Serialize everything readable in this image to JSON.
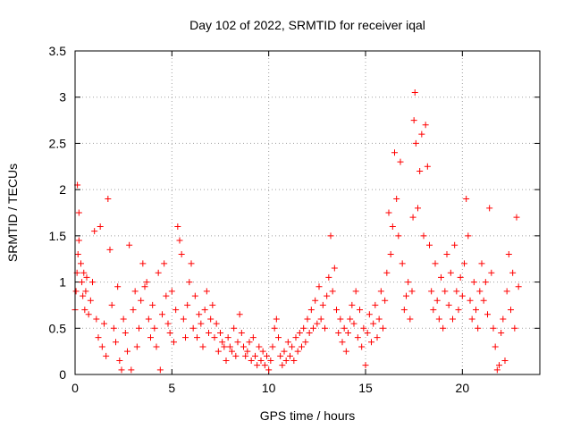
{
  "chart_data": {
    "type": "scatter",
    "title": "Day 102 of 2022, SRMTID for receiver iqal",
    "xlabel": "GPS time / hours",
    "ylabel": "SRMTID / TECUs",
    "xlim": [
      0,
      24
    ],
    "ylim": [
      0,
      3.5
    ],
    "x_ticks": [
      0,
      5,
      10,
      15,
      20
    ],
    "x_tick_labels": [
      "0",
      "5",
      "10",
      "15",
      "20"
    ],
    "y_ticks": [
      0,
      0.5,
      1,
      1.5,
      2,
      2.5,
      3,
      3.5
    ],
    "y_tick_labels": [
      "0",
      "0.5",
      "1",
      "1.5",
      "2",
      "2.5",
      "3",
      "3.5"
    ],
    "grid": true,
    "marker": "+",
    "color": "#ff0000",
    "series": [
      {
        "name": "SRMTID",
        "points": [
          [
            0.0,
            0.7
          ],
          [
            0.05,
            0.9
          ],
          [
            0.1,
            1.1
          ],
          [
            0.15,
            1.3
          ],
          [
            0.2,
            1.45
          ],
          [
            0.12,
            2.05
          ],
          [
            0.2,
            1.75
          ],
          [
            0.3,
            1.2
          ],
          [
            0.35,
            1.0
          ],
          [
            0.4,
            0.85
          ],
          [
            0.45,
            1.1
          ],
          [
            0.5,
            0.7
          ],
          [
            0.55,
            0.9
          ],
          [
            0.6,
            1.05
          ],
          [
            0.7,
            0.65
          ],
          [
            0.8,
            0.8
          ],
          [
            0.9,
            1.0
          ],
          [
            1.0,
            1.55
          ],
          [
            1.1,
            0.6
          ],
          [
            1.2,
            0.4
          ],
          [
            1.3,
            1.6
          ],
          [
            1.4,
            0.3
          ],
          [
            1.5,
            0.55
          ],
          [
            1.6,
            0.2
          ],
          [
            1.7,
            1.9
          ],
          [
            1.8,
            1.35
          ],
          [
            1.9,
            0.75
          ],
          [
            2.0,
            0.5
          ],
          [
            2.1,
            0.35
          ],
          [
            2.2,
            0.95
          ],
          [
            2.3,
            0.15
          ],
          [
            2.4,
            0.05
          ],
          [
            2.5,
            0.6
          ],
          [
            2.6,
            0.45
          ],
          [
            2.7,
            0.25
          ],
          [
            2.8,
            1.4
          ],
          [
            2.9,
            0.05
          ],
          [
            3.0,
            0.7
          ],
          [
            3.1,
            0.9
          ],
          [
            3.2,
            0.3
          ],
          [
            3.3,
            0.5
          ],
          [
            3.4,
            0.8
          ],
          [
            3.5,
            1.2
          ],
          [
            3.6,
            0.95
          ],
          [
            3.7,
            1.0
          ],
          [
            3.8,
            0.6
          ],
          [
            3.9,
            0.4
          ],
          [
            4.0,
            0.75
          ],
          [
            4.1,
            0.5
          ],
          [
            4.2,
            0.3
          ],
          [
            4.3,
            1.1
          ],
          [
            4.4,
            0.05
          ],
          [
            4.5,
            0.65
          ],
          [
            4.6,
            1.2
          ],
          [
            4.7,
            0.85
          ],
          [
            4.8,
            0.55
          ],
          [
            4.9,
            0.45
          ],
          [
            5.0,
            0.9
          ],
          [
            5.1,
            0.35
          ],
          [
            5.2,
            0.7
          ],
          [
            5.3,
            1.6
          ],
          [
            5.4,
            1.45
          ],
          [
            5.5,
            1.3
          ],
          [
            5.6,
            0.6
          ],
          [
            5.7,
            0.4
          ],
          [
            5.8,
            0.75
          ],
          [
            5.9,
            1.0
          ],
          [
            6.0,
            1.2
          ],
          [
            6.1,
            0.5
          ],
          [
            6.2,
            0.85
          ],
          [
            6.3,
            0.4
          ],
          [
            6.4,
            0.65
          ],
          [
            6.5,
            0.55
          ],
          [
            6.6,
            0.3
          ],
          [
            6.7,
            0.7
          ],
          [
            6.8,
            0.9
          ],
          [
            6.9,
            0.45
          ],
          [
            7.0,
            0.6
          ],
          [
            7.1,
            0.75
          ],
          [
            7.2,
            0.4
          ],
          [
            7.3,
            0.55
          ],
          [
            7.4,
            0.25
          ],
          [
            7.5,
            0.45
          ],
          [
            7.6,
            0.35
          ],
          [
            7.7,
            0.3
          ],
          [
            7.8,
            0.15
          ],
          [
            7.9,
            0.4
          ],
          [
            8.0,
            0.3
          ],
          [
            8.1,
            0.25
          ],
          [
            8.2,
            0.5
          ],
          [
            8.3,
            0.2
          ],
          [
            8.4,
            0.35
          ],
          [
            8.5,
            0.65
          ],
          [
            8.6,
            0.45
          ],
          [
            8.7,
            0.3
          ],
          [
            8.8,
            0.2
          ],
          [
            8.9,
            0.25
          ],
          [
            9.0,
            0.35
          ],
          [
            9.1,
            0.15
          ],
          [
            9.2,
            0.4
          ],
          [
            9.3,
            0.2
          ],
          [
            9.4,
            0.1
          ],
          [
            9.5,
            0.3
          ],
          [
            9.6,
            0.15
          ],
          [
            9.7,
            0.25
          ],
          [
            9.8,
            0.1
          ],
          [
            9.9,
            0.2
          ],
          [
            10.0,
            0.05
          ],
          [
            10.1,
            0.15
          ],
          [
            10.2,
            0.3
          ],
          [
            10.3,
            0.5
          ],
          [
            10.4,
            0.6
          ],
          [
            10.5,
            0.4
          ],
          [
            10.6,
            0.2
          ],
          [
            10.7,
            0.1
          ],
          [
            10.8,
            0.25
          ],
          [
            10.9,
            0.15
          ],
          [
            11.0,
            0.35
          ],
          [
            11.1,
            0.2
          ],
          [
            11.2,
            0.3
          ],
          [
            11.3,
            0.15
          ],
          [
            11.4,
            0.4
          ],
          [
            11.5,
            0.25
          ],
          [
            11.6,
            0.45
          ],
          [
            11.7,
            0.3
          ],
          [
            11.8,
            0.5
          ],
          [
            11.9,
            0.35
          ],
          [
            12.0,
            0.6
          ],
          [
            12.1,
            0.45
          ],
          [
            12.2,
            0.7
          ],
          [
            12.3,
            0.5
          ],
          [
            12.4,
            0.8
          ],
          [
            12.5,
            0.55
          ],
          [
            12.6,
            0.95
          ],
          [
            12.7,
            0.6
          ],
          [
            12.8,
            0.75
          ],
          [
            12.9,
            0.5
          ],
          [
            13.0,
            0.85
          ],
          [
            13.1,
            1.05
          ],
          [
            13.2,
            1.5
          ],
          [
            13.3,
            0.9
          ],
          [
            13.4,
            1.15
          ],
          [
            13.5,
            0.7
          ],
          [
            13.6,
            0.45
          ],
          [
            13.7,
            0.6
          ],
          [
            13.8,
            0.35
          ],
          [
            13.9,
            0.5
          ],
          [
            14.0,
            0.25
          ],
          [
            14.1,
            0.45
          ],
          [
            14.2,
            0.6
          ],
          [
            14.3,
            0.75
          ],
          [
            14.4,
            0.55
          ],
          [
            14.5,
            0.9
          ],
          [
            14.6,
            0.4
          ],
          [
            14.7,
            0.7
          ],
          [
            14.8,
            0.3
          ],
          [
            14.9,
            0.5
          ],
          [
            15.0,
            0.1
          ],
          [
            15.1,
            0.45
          ],
          [
            15.2,
            0.65
          ],
          [
            15.3,
            0.35
          ],
          [
            15.4,
            0.55
          ],
          [
            15.5,
            0.75
          ],
          [
            15.6,
            0.4
          ],
          [
            15.7,
            0.6
          ],
          [
            15.8,
            0.9
          ],
          [
            15.9,
            0.5
          ],
          [
            16.0,
            0.8
          ],
          [
            16.1,
            1.1
          ],
          [
            16.2,
            1.75
          ],
          [
            16.3,
            1.3
          ],
          [
            16.4,
            1.6
          ],
          [
            16.5,
            2.4
          ],
          [
            16.6,
            1.9
          ],
          [
            16.7,
            1.5
          ],
          [
            16.8,
            2.3
          ],
          [
            16.9,
            1.2
          ],
          [
            17.0,
            0.7
          ],
          [
            17.1,
            0.85
          ],
          [
            17.2,
            1.0
          ],
          [
            17.3,
            0.6
          ],
          [
            17.4,
            0.9
          ],
          [
            17.45,
            1.7
          ],
          [
            17.5,
            2.75
          ],
          [
            17.55,
            3.05
          ],
          [
            17.6,
            2.5
          ],
          [
            17.7,
            1.8
          ],
          [
            17.8,
            2.2
          ],
          [
            17.9,
            2.6
          ],
          [
            18.0,
            1.5
          ],
          [
            18.1,
            2.7
          ],
          [
            18.2,
            2.25
          ],
          [
            18.3,
            1.4
          ],
          [
            18.4,
            0.9
          ],
          [
            18.5,
            0.7
          ],
          [
            18.6,
            1.2
          ],
          [
            18.7,
            0.8
          ],
          [
            18.8,
            0.6
          ],
          [
            18.9,
            1.05
          ],
          [
            19.0,
            0.5
          ],
          [
            19.1,
            0.9
          ],
          [
            19.2,
            1.3
          ],
          [
            19.3,
            0.75
          ],
          [
            19.4,
            1.1
          ],
          [
            19.5,
            0.6
          ],
          [
            19.6,
            1.4
          ],
          [
            19.7,
            0.9
          ],
          [
            19.8,
            0.7
          ],
          [
            19.9,
            1.05
          ],
          [
            20.0,
            0.85
          ],
          [
            20.1,
            1.2
          ],
          [
            20.2,
            1.9
          ],
          [
            20.3,
            1.5
          ],
          [
            20.4,
            0.8
          ],
          [
            20.5,
            0.6
          ],
          [
            20.6,
            1.0
          ],
          [
            20.7,
            0.7
          ],
          [
            20.8,
            0.5
          ],
          [
            20.9,
            0.9
          ],
          [
            21.0,
            1.2
          ],
          [
            21.1,
            0.8
          ],
          [
            21.2,
            1.0
          ],
          [
            21.3,
            0.65
          ],
          [
            21.4,
            1.8
          ],
          [
            21.5,
            1.1
          ],
          [
            21.6,
            0.5
          ],
          [
            21.7,
            0.3
          ],
          [
            21.8,
            0.05
          ],
          [
            21.9,
            0.1
          ],
          [
            22.0,
            0.45
          ],
          [
            22.1,
            0.6
          ],
          [
            22.2,
            0.15
          ],
          [
            22.3,
            0.9
          ],
          [
            22.4,
            1.3
          ],
          [
            22.5,
            0.7
          ],
          [
            22.6,
            1.1
          ],
          [
            22.7,
            0.5
          ],
          [
            22.8,
            1.7
          ],
          [
            22.9,
            0.95
          ]
        ]
      }
    ]
  }
}
